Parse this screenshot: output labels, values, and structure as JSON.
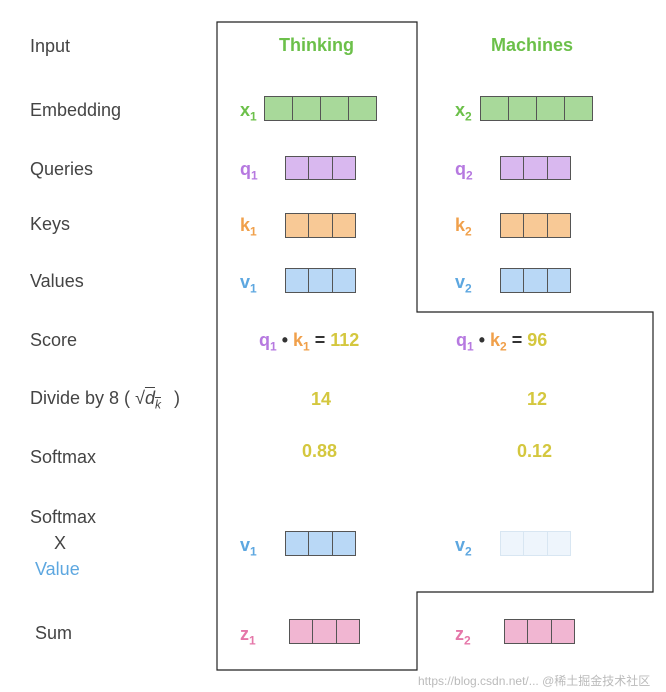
{
  "row_labels": {
    "input": "Input",
    "embedding": "Embedding",
    "queries": "Queries",
    "keys": "Keys",
    "values": "Values",
    "score": "Score",
    "divide": "Divide by 8 (",
    "divide_close": ")",
    "sqrt_symbol": "√",
    "sqrt_arg": "d",
    "sqrt_sub": "k",
    "softmax": "Softmax",
    "softmax_x_value_1": "Softmax",
    "softmax_x_value_2": "X",
    "softmax_x_value_3": "Value",
    "sum": "Sum"
  },
  "words": {
    "col1": "Thinking",
    "col2": "Machines"
  },
  "symbols": {
    "x": "x",
    "q": "q",
    "k": "k",
    "v": "v",
    "z": "z",
    "sub1": "1",
    "sub2": "2"
  },
  "score": {
    "dot": "•",
    "eq": "=",
    "col1_value": "112",
    "col2_value": "96"
  },
  "divide_values": {
    "col1": "14",
    "col2": "12"
  },
  "softmax_values": {
    "col1": "0.88",
    "col2": "0.12"
  },
  "watermark": "https://blog.csdn.net/... @稀土掘金技术社区",
  "colors": {
    "embedding_fill": "#a8d99a",
    "query_fill": "#d9b8ef",
    "key_fill": "#f8c996",
    "value_fill": "#b9d8f6",
    "value_faded_fill": "#eef5fc",
    "sum_fill": "#f1b6d2",
    "word_green": "#6cc04a",
    "number_yellow": "#d4c73e"
  }
}
